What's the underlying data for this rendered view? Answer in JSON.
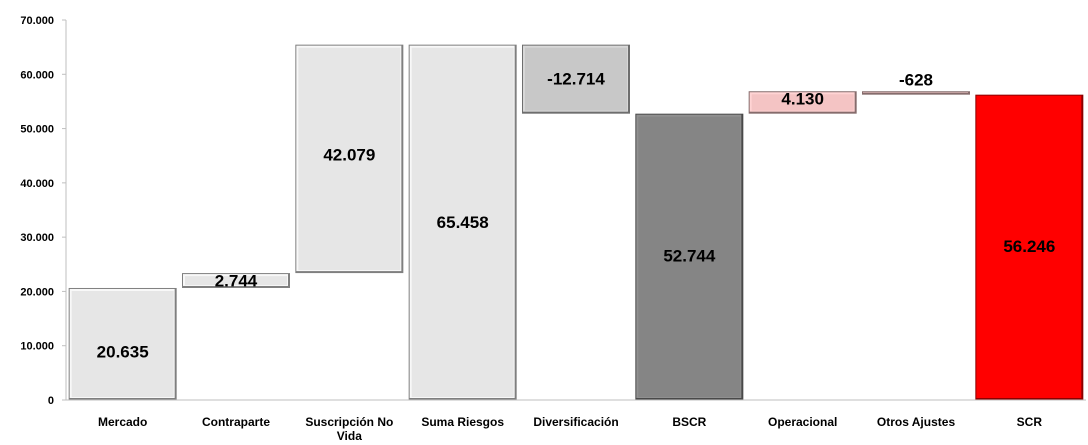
{
  "chart_data": {
    "type": "bar",
    "subtype": "waterfall",
    "title": "",
    "xlabel": "",
    "ylabel": "",
    "ylim": [
      0,
      70000
    ],
    "yticks": [
      "0",
      "10.000",
      "20.000",
      "30.000",
      "40.000",
      "50.000",
      "60.000",
      "70.000"
    ],
    "grid": false,
    "categories": [
      "Mercado",
      "Contraparte",
      "Suscripción No Vida",
      "Suma Riesgos",
      "Diversificación",
      "BSCR",
      "Operacional",
      "Otros Ajustes",
      "SCR"
    ],
    "category_lines": [
      [
        "Mercado"
      ],
      [
        "Contraparte"
      ],
      [
        "Suscripción No",
        "Vida"
      ],
      [
        "Suma Riesgos"
      ],
      [
        "Diversificación"
      ],
      [
        "BSCR"
      ],
      [
        "Operacional"
      ],
      [
        "Otros Ajustes"
      ],
      [
        "SCR"
      ]
    ],
    "bars": [
      {
        "category": "Mercado",
        "start": 0,
        "end": 20635,
        "label": "20.635",
        "color": "#e6e6e6"
      },
      {
        "category": "Contraparte",
        "start": 20635,
        "end": 23379,
        "label": "2.744",
        "color": "#e6e6e6"
      },
      {
        "category": "Suscripción No Vida",
        "start": 23379,
        "end": 65458,
        "label": "42.079",
        "color": "#e6e6e6"
      },
      {
        "category": "Suma Riesgos",
        "start": 0,
        "end": 65458,
        "label": "65.458",
        "color": "#e6e6e6"
      },
      {
        "category": "Diversificación",
        "start": 52744,
        "end": 65458,
        "label": "-12.714",
        "color": "#c8c8c8"
      },
      {
        "category": "BSCR",
        "start": 0,
        "end": 52744,
        "label": "52.744",
        "color": "#858585"
      },
      {
        "category": "Operacional",
        "start": 52744,
        "end": 56874,
        "label": "4.130",
        "color": "#f4c4c4"
      },
      {
        "category": "Otros Ajustes",
        "start": 56246,
        "end": 56874,
        "label": "-628",
        "color": "#f4c4c4"
      },
      {
        "category": "SCR",
        "start": 0,
        "end": 56246,
        "label": "56.246",
        "color": "#ff0000"
      }
    ]
  }
}
